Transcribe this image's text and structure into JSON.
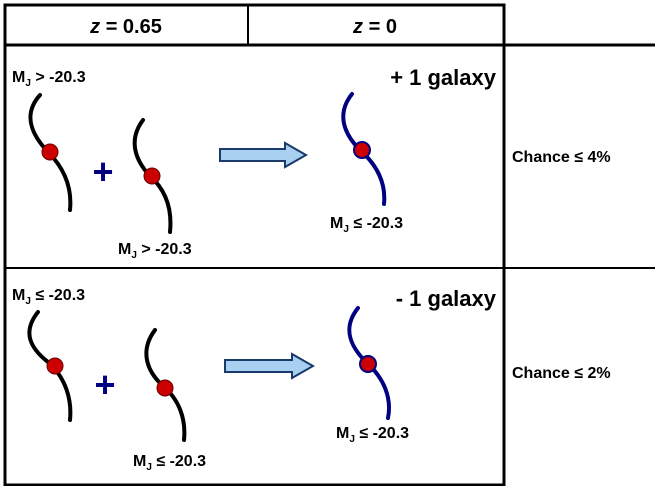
{
  "header": {
    "z_label": "z",
    "col1": " = 0.65",
    "col2": " = 0"
  },
  "rows": [
    {
      "top_left_label": {
        "main": "M",
        "sub": "J",
        "rest": " > -20.3"
      },
      "bottom_left_label": {
        "main": "M",
        "sub": "J",
        "rest": " > -20.3"
      },
      "plus": "+",
      "result_count": "+ 1 galaxy",
      "result_label": {
        "main": "M",
        "sub": "J",
        "rest": " ≤ -20.3"
      },
      "chance": "Chance  ≤ 4%"
    },
    {
      "top_left_label": {
        "main": "M",
        "sub": "J",
        "rest": " ≤ -20.3"
      },
      "bottom_left_label": {
        "main": "M",
        "sub": "J",
        "rest": " ≤ -20.3"
      },
      "plus": "+",
      "result_count": "- 1 galaxy",
      "result_label": {
        "main": "M",
        "sub": "J",
        "rest": " ≤ -20.3"
      },
      "chance": "Chance  ≤ 2%"
    }
  ],
  "colors": {
    "progenitor_curve": "#000000",
    "descendant_curve": "#000080",
    "galaxy_dot": "#cc0000",
    "plus_sign": "#000080",
    "arrow_fill": "#a8d0f0",
    "arrow_stroke": "#1a3a6a"
  }
}
